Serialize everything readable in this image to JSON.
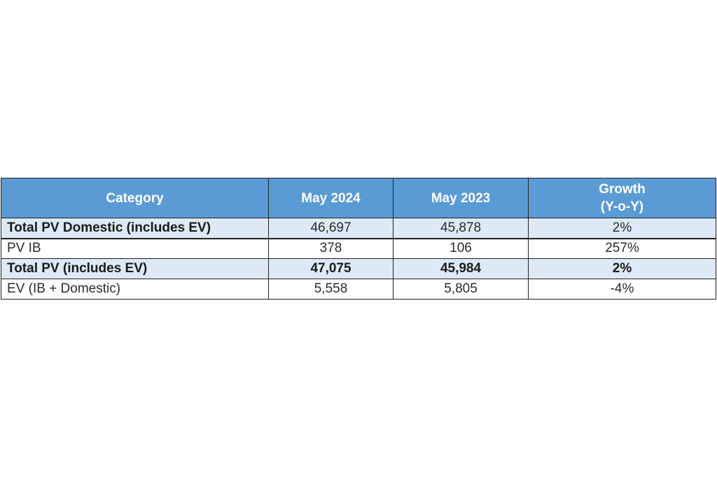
{
  "table": {
    "headers": {
      "category": "Category",
      "current": "May 2024",
      "previous": "May 2023",
      "growth_line1": "Growth",
      "growth_line2": "(Y-o-Y)"
    },
    "rows": [
      {
        "category": "Total PV Domestic (includes EV)",
        "current": "46,697",
        "previous": "45,878",
        "growth": "2%"
      },
      {
        "category": "PV IB",
        "current": "378",
        "previous": "106",
        "growth": "257%"
      },
      {
        "category": "Total PV (includes EV)",
        "current": "47,075",
        "previous": "45,984",
        "growth": "2%"
      },
      {
        "category": "EV (IB + Domestic)",
        "current": "5,558",
        "previous": "5,805",
        "growth": "-4%"
      }
    ]
  },
  "colors": {
    "header_bg": "#5b9bd5",
    "header_text": "#ffffff",
    "shaded_row_bg": "#dde9f6",
    "border": "#1f1f1f"
  }
}
